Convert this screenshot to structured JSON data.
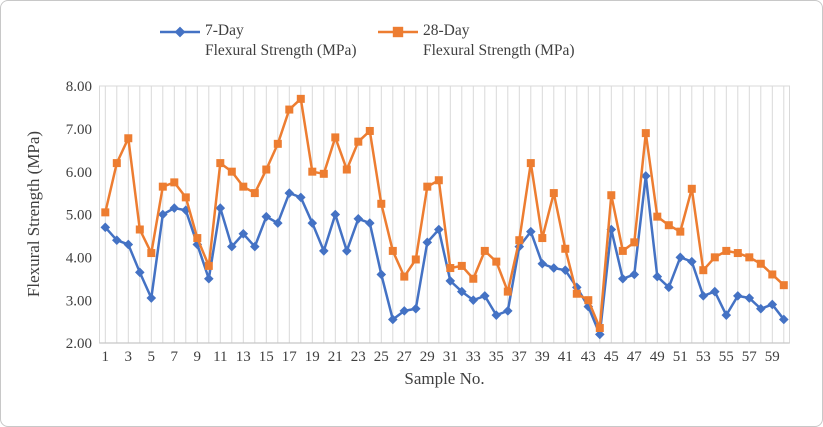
{
  "window": {
    "background": "#ffffff",
    "border_color": "#c8c8c8"
  },
  "legend": {
    "position": "top-center",
    "items": [
      {
        "label": "7-Day",
        "sublabel": "Flexural Strength (MPa)",
        "marker": "diamond",
        "color": "#4472C4"
      },
      {
        "label": "28-Day",
        "sublabel": "Flexural Strength (MPa)",
        "marker": "square",
        "color": "#ED7D31"
      }
    ]
  },
  "chart_data": {
    "type": "line",
    "title": "",
    "xlabel": "Sample No.",
    "ylabel": "Flexural Strength (MPa)",
    "x_range": [
      1,
      60
    ],
    "ylim": [
      2,
      8
    ],
    "grid": "vertical category gridlines only",
    "legend_position": "top",
    "y_ticks": [
      2,
      3,
      4,
      5,
      6,
      7,
      8
    ],
    "y_tick_labels": [
      "2.00",
      "3.00",
      "4.00",
      "5.00",
      "6.00",
      "7.00",
      "8.00"
    ],
    "x_tick_labels": [
      "1",
      "3",
      "5",
      "7",
      "9",
      "11",
      "13",
      "15",
      "17",
      "19",
      "21",
      "23",
      "25",
      "27",
      "29",
      "31",
      "33",
      "35",
      "37",
      "39",
      "41",
      "43",
      "45",
      "47",
      "49",
      "51",
      "53",
      "55",
      "57",
      "59"
    ],
    "series": [
      {
        "name": "7-Day Flexural Strength (MPa)",
        "short_name": "7-Day",
        "color": "#4472C4",
        "marker": "diamond",
        "values": [
          4.7,
          4.4,
          4.3,
          3.65,
          3.05,
          5.0,
          5.15,
          5.1,
          4.3,
          3.5,
          5.15,
          4.25,
          4.55,
          4.25,
          4.95,
          4.8,
          5.5,
          5.4,
          4.8,
          4.15,
          5.0,
          4.15,
          4.9,
          4.8,
          3.6,
          2.55,
          2.75,
          2.8,
          4.35,
          4.65,
          3.45,
          3.2,
          3.0,
          3.1,
          2.65,
          2.75,
          4.25,
          4.6,
          3.85,
          3.75,
          3.7,
          3.3,
          2.85,
          2.2,
          4.65,
          3.5,
          3.6,
          5.9,
          3.55,
          3.3,
          4.0,
          3.9,
          3.1,
          3.2,
          2.65,
          3.1,
          3.05,
          2.8,
          2.9,
          2.55
        ]
      },
      {
        "name": "28-Day Flexural Strength (MPa)",
        "short_name": "28-Day",
        "color": "#ED7D31",
        "marker": "square",
        "values": [
          5.05,
          6.2,
          6.78,
          4.65,
          4.1,
          5.65,
          5.75,
          5.4,
          4.45,
          3.8,
          6.2,
          6.0,
          5.65,
          5.5,
          6.05,
          6.65,
          7.45,
          7.7,
          6.0,
          5.95,
          6.8,
          6.05,
          6.7,
          6.95,
          5.25,
          4.15,
          3.55,
          3.95,
          5.65,
          5.8,
          3.75,
          3.8,
          3.5,
          4.15,
          3.9,
          3.2,
          4.4,
          6.2,
          4.45,
          5.5,
          4.2,
          3.15,
          3.0,
          2.35,
          5.45,
          4.15,
          4.35,
          6.9,
          4.95,
          4.75,
          4.6,
          5.6,
          3.7,
          4.0,
          4.15,
          4.1,
          4.0,
          3.85,
          3.6,
          3.35
        ]
      }
    ],
    "style": {
      "gridline_color": "#d9d9d9",
      "axis_line_color": "#c6c6c6",
      "text_color": "#3f3f3f",
      "line_width": 2.5
    }
  }
}
